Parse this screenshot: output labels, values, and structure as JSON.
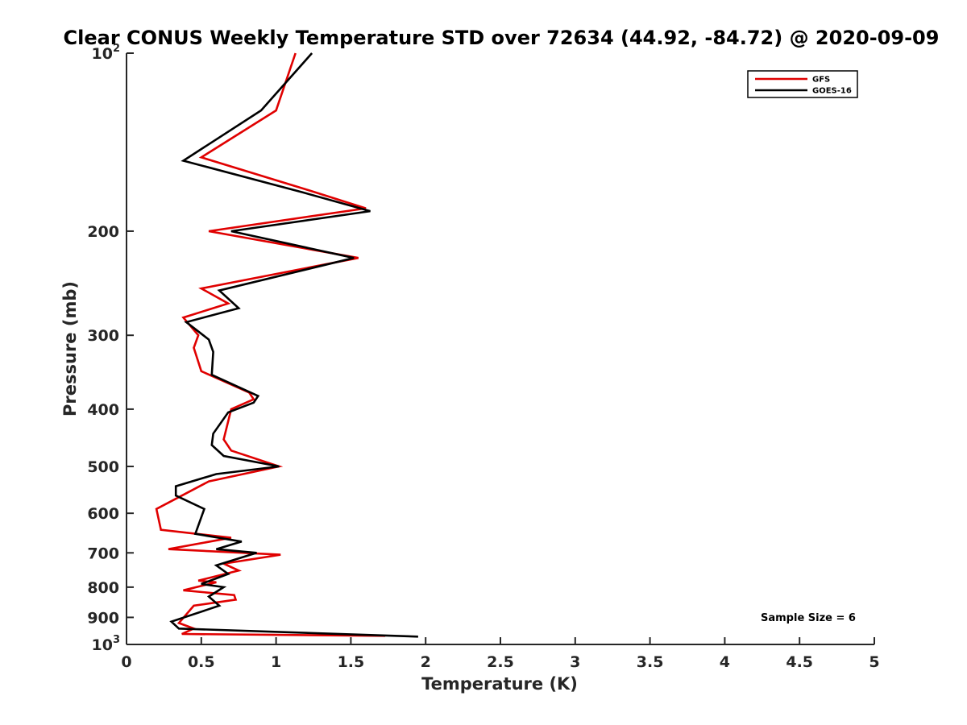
{
  "chart_data": {
    "type": "line",
    "title": "Clear CONUS Weekly Temperature STD over 72634 (44.92, -84.72) @ 2020-09-09",
    "xlabel": "Temperature (K)",
    "ylabel": "Pressure (mb)",
    "xlim": [
      0,
      5
    ],
    "ylim": [
      100,
      1000
    ],
    "y_scale": "log",
    "y_reversed": true,
    "grid": false,
    "legend_position": "top-right",
    "x_ticks": [
      0,
      0.5,
      1,
      1.5,
      2,
      2.5,
      3,
      3.5,
      4,
      4.5,
      5
    ],
    "x_tick_labels": [
      "0",
      "0.5",
      "1",
      "1.5",
      "2",
      "2.5",
      "3",
      "3.5",
      "4",
      "4.5",
      "5"
    ],
    "y_ticks": [
      {
        "value": 100,
        "base": "10",
        "exp": "2"
      },
      {
        "value": 200,
        "label": "200"
      },
      {
        "value": 300,
        "label": "300"
      },
      {
        "value": 400,
        "label": "400"
      },
      {
        "value": 500,
        "label": "500"
      },
      {
        "value": 600,
        "label": "600"
      },
      {
        "value": 700,
        "label": "700"
      },
      {
        "value": 800,
        "label": "800"
      },
      {
        "value": 900,
        "label": "900"
      },
      {
        "value": 1000,
        "base": "10",
        "exp": "3"
      }
    ],
    "series": [
      {
        "name": "GFS",
        "color": "#e00000",
        "points": [
          [
            1.13,
            100
          ],
          [
            1.0,
            125
          ],
          [
            0.5,
            150
          ],
          [
            1.2,
            170
          ],
          [
            1.6,
            183
          ],
          [
            0.55,
            200
          ],
          [
            1.55,
            222
          ],
          [
            0.5,
            250
          ],
          [
            0.68,
            265
          ],
          [
            0.38,
            280
          ],
          [
            0.48,
            300
          ],
          [
            0.45,
            315
          ],
          [
            0.5,
            345
          ],
          [
            0.82,
            375
          ],
          [
            0.85,
            385
          ],
          [
            0.7,
            400
          ],
          [
            0.65,
            450
          ],
          [
            0.7,
            470
          ],
          [
            1.02,
            500
          ],
          [
            0.55,
            530
          ],
          [
            0.4,
            555
          ],
          [
            0.2,
            590
          ],
          [
            0.23,
            640
          ],
          [
            0.7,
            660
          ],
          [
            0.28,
            690
          ],
          [
            1.03,
            705
          ],
          [
            0.65,
            730
          ],
          [
            0.75,
            750
          ],
          [
            0.48,
            780
          ],
          [
            0.6,
            785
          ],
          [
            0.38,
            810
          ],
          [
            0.72,
            825
          ],
          [
            0.73,
            840
          ],
          [
            0.45,
            860
          ],
          [
            0.35,
            920
          ],
          [
            0.45,
            940
          ],
          [
            0.37,
            960
          ],
          [
            1.73,
            967
          ]
        ]
      },
      {
        "name": "GOES-16",
        "color": "#000000",
        "points": [
          [
            1.24,
            100
          ],
          [
            0.9,
            125
          ],
          [
            0.38,
            152
          ],
          [
            1.18,
            172
          ],
          [
            1.63,
            185
          ],
          [
            0.7,
            200
          ],
          [
            1.52,
            222
          ],
          [
            0.62,
            252
          ],
          [
            0.75,
            270
          ],
          [
            0.4,
            285
          ],
          [
            0.55,
            305
          ],
          [
            0.58,
            320
          ],
          [
            0.57,
            350
          ],
          [
            0.88,
            380
          ],
          [
            0.85,
            390
          ],
          [
            0.68,
            405
          ],
          [
            0.58,
            440
          ],
          [
            0.57,
            460
          ],
          [
            0.65,
            480
          ],
          [
            1.02,
            500
          ],
          [
            0.6,
            515
          ],
          [
            0.33,
            540
          ],
          [
            0.33,
            560
          ],
          [
            0.52,
            590
          ],
          [
            0.46,
            650
          ],
          [
            0.77,
            670
          ],
          [
            0.6,
            690
          ],
          [
            0.87,
            700
          ],
          [
            0.6,
            735
          ],
          [
            0.68,
            760
          ],
          [
            0.5,
            790
          ],
          [
            0.65,
            800
          ],
          [
            0.55,
            830
          ],
          [
            0.62,
            860
          ],
          [
            0.3,
            915
          ],
          [
            0.35,
            940
          ],
          [
            1.95,
            970
          ]
        ]
      }
    ],
    "annotation": "Sample Size = 6"
  }
}
